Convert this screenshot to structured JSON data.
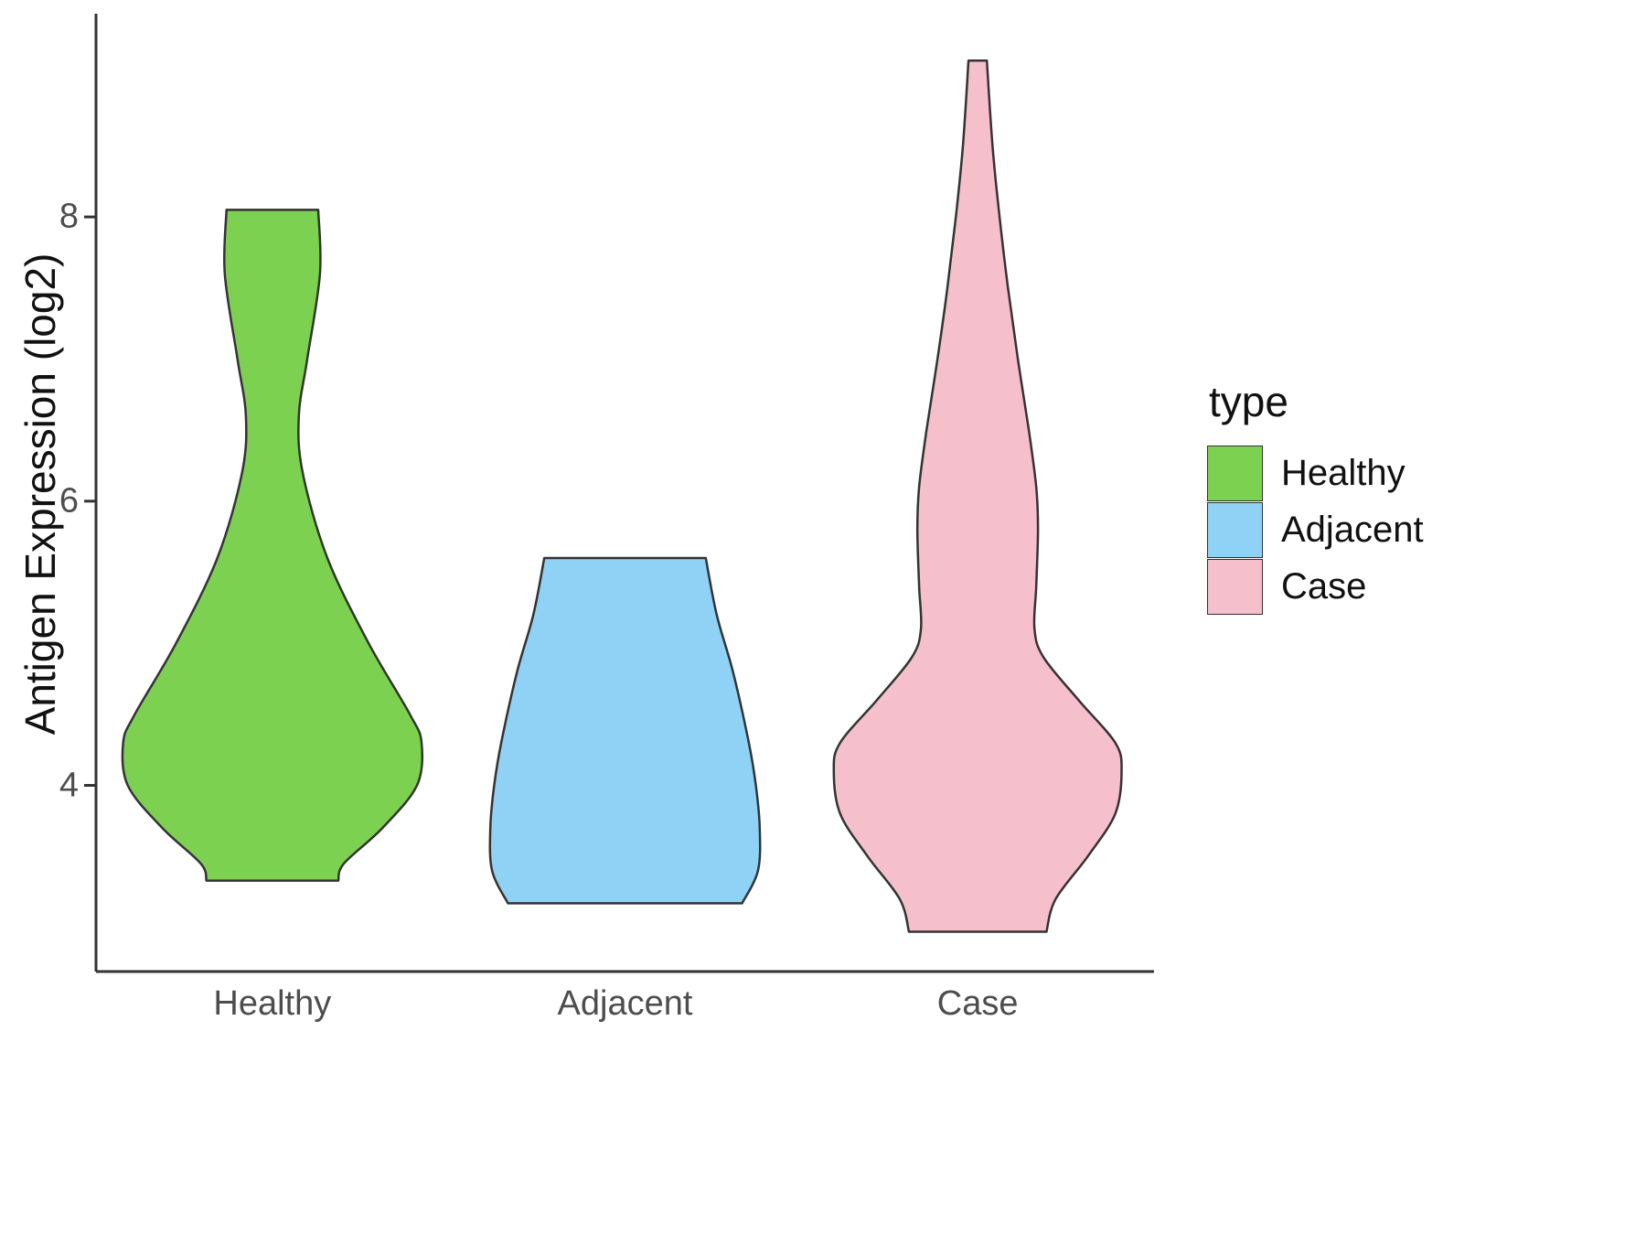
{
  "chart_data": {
    "type": "violin",
    "title": "",
    "xlabel": "",
    "ylabel": "Antigen Expression (log2)",
    "categories": [
      "Healthy",
      "Adjacent",
      "Case"
    ],
    "y_ticks": [
      4,
      6,
      8
    ],
    "ylim": [
      2.69,
      9.43
    ],
    "grid": false,
    "axis_color": "#333333",
    "outline_color": "#333333",
    "tick_label_color": "#4d4d4d",
    "legend": {
      "title": "type",
      "position": "right",
      "entries": [
        {
          "label": "Healthy",
          "color": "#7CD250"
        },
        {
          "label": "Adjacent",
          "color": "#8FD2F5"
        },
        {
          "label": "Case",
          "color": "#F5BFCB"
        }
      ]
    },
    "width_unit": "halfwidth as fraction of category spacing",
    "series": [
      {
        "name": "Healthy",
        "color": "#7CD250",
        "profile": [
          [
            8.05,
            0.13
          ],
          [
            7.6,
            0.135
          ],
          [
            7.0,
            0.099
          ],
          [
            6.6,
            0.075
          ],
          [
            6.2,
            0.086
          ],
          [
            5.6,
            0.156
          ],
          [
            5.0,
            0.273
          ],
          [
            4.5,
            0.39
          ],
          [
            4.3,
            0.423
          ],
          [
            4.0,
            0.41
          ],
          [
            3.7,
            0.312
          ],
          [
            3.45,
            0.203
          ],
          [
            3.33,
            0.187
          ]
        ]
      },
      {
        "name": "Adjacent",
        "color": "#8FD2F5",
        "profile": [
          [
            5.6,
            0.229
          ],
          [
            5.2,
            0.26
          ],
          [
            4.8,
            0.306
          ],
          [
            4.3,
            0.351
          ],
          [
            4.0,
            0.371
          ],
          [
            3.7,
            0.382
          ],
          [
            3.4,
            0.377
          ],
          [
            3.17,
            0.332
          ]
        ]
      },
      {
        "name": "Case",
        "color": "#F5BFCB",
        "profile": [
          [
            9.1,
            0.026
          ],
          [
            8.5,
            0.042
          ],
          [
            8.0,
            0.062
          ],
          [
            7.5,
            0.086
          ],
          [
            7.0,
            0.114
          ],
          [
            6.5,
            0.145
          ],
          [
            6.1,
            0.166
          ],
          [
            5.8,
            0.171
          ],
          [
            5.4,
            0.166
          ],
          [
            5.1,
            0.161
          ],
          [
            4.9,
            0.187
          ],
          [
            4.6,
            0.286
          ],
          [
            4.3,
            0.39
          ],
          [
            4.1,
            0.408
          ],
          [
            3.8,
            0.39
          ],
          [
            3.5,
            0.312
          ],
          [
            3.2,
            0.221
          ],
          [
            2.97,
            0.195
          ]
        ]
      }
    ]
  }
}
